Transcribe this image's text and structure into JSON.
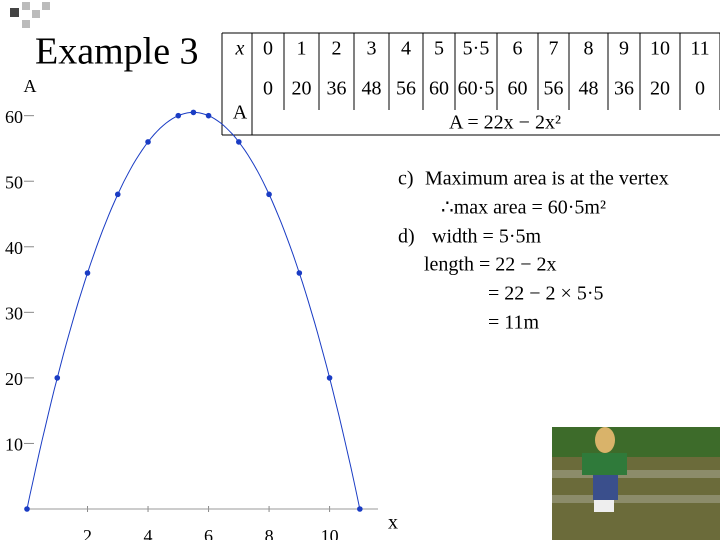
{
  "title": "Example 3",
  "table": {
    "rows": [
      [
        "x",
        "0",
        "1",
        "2",
        "3",
        "4",
        "5",
        "5·5",
        "6",
        "7",
        "8",
        "9",
        "10",
        "11"
      ],
      [
        "A",
        "0",
        "20",
        "36",
        "48",
        "56",
        "60",
        "60·5",
        "60",
        "56",
        "48",
        "36",
        "20",
        "0"
      ]
    ],
    "formula": "A = 22x − 2x²"
  },
  "chart_data": {
    "type": "line",
    "x_label": "x",
    "y_label": "A",
    "x": [
      0,
      1,
      2,
      3,
      4,
      5,
      5.5,
      6,
      7,
      8,
      9,
      10,
      11
    ],
    "values": [
      0,
      20,
      36,
      48,
      56,
      60,
      60.5,
      60,
      56,
      48,
      36,
      20,
      0
    ],
    "color": "#1a3cc4",
    "xlim": [
      0,
      11.6
    ],
    "ylim": [
      0,
      63
    ],
    "xticks": [
      2,
      4,
      6,
      8,
      10
    ],
    "yticks": [
      10,
      20,
      30,
      40,
      50,
      60
    ]
  },
  "notes": [
    "c)",
    "Maximum area is at the vertex",
    "∴max area = 60·5m²",
    "d)",
    "width = 5·5m",
    "length = 22 − 2x",
    "= 22 − 2 × 5·5",
    "= 11m"
  ]
}
